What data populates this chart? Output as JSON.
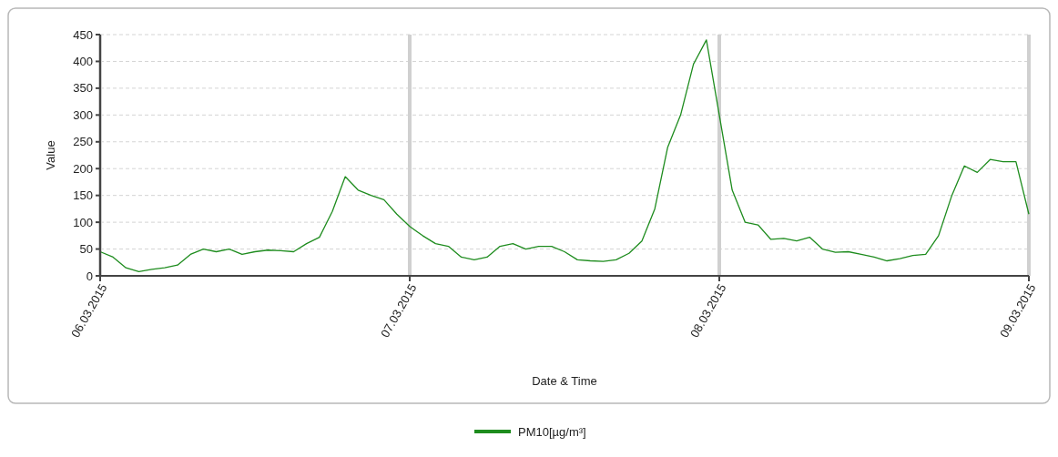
{
  "chart_data": {
    "type": "line",
    "xlabel": "Date & Time",
    "ylabel": "Value",
    "x": [
      "2015-03-06T00:00",
      "2015-03-06T01:00",
      "2015-03-06T02:00",
      "2015-03-06T03:00",
      "2015-03-06T04:00",
      "2015-03-06T05:00",
      "2015-03-06T06:00",
      "2015-03-06T07:00",
      "2015-03-06T08:00",
      "2015-03-06T09:00",
      "2015-03-06T10:00",
      "2015-03-06T11:00",
      "2015-03-06T12:00",
      "2015-03-06T13:00",
      "2015-03-06T14:00",
      "2015-03-06T15:00",
      "2015-03-06T16:00",
      "2015-03-06T17:00",
      "2015-03-06T18:00",
      "2015-03-06T19:00",
      "2015-03-06T20:00",
      "2015-03-06T21:00",
      "2015-03-06T22:00",
      "2015-03-06T23:00",
      "2015-03-07T00:00",
      "2015-03-07T01:00",
      "2015-03-07T02:00",
      "2015-03-07T03:00",
      "2015-03-07T04:00",
      "2015-03-07T05:00",
      "2015-03-07T06:00",
      "2015-03-07T07:00",
      "2015-03-07T08:00",
      "2015-03-07T09:00",
      "2015-03-07T10:00",
      "2015-03-07T11:00",
      "2015-03-07T12:00",
      "2015-03-07T13:00",
      "2015-03-07T14:00",
      "2015-03-07T15:00",
      "2015-03-07T16:00",
      "2015-03-07T17:00",
      "2015-03-07T18:00",
      "2015-03-07T19:00",
      "2015-03-07T20:00",
      "2015-03-07T21:00",
      "2015-03-07T22:00",
      "2015-03-07T23:00",
      "2015-03-08T00:00",
      "2015-03-08T01:00",
      "2015-03-08T02:00",
      "2015-03-08T03:00",
      "2015-03-08T04:00",
      "2015-03-08T05:00",
      "2015-03-08T06:00",
      "2015-03-08T07:00",
      "2015-03-08T08:00",
      "2015-03-08T09:00",
      "2015-03-08T10:00",
      "2015-03-08T11:00",
      "2015-03-08T12:00",
      "2015-03-08T13:00",
      "2015-03-08T14:00",
      "2015-03-08T15:00",
      "2015-03-08T16:00",
      "2015-03-08T17:00",
      "2015-03-08T18:00",
      "2015-03-08T19:00",
      "2015-03-08T20:00",
      "2015-03-08T21:00",
      "2015-03-08T22:00",
      "2015-03-08T23:00",
      "2015-03-09T00:00"
    ],
    "series": [
      {
        "name": "PM10[µg/m³]",
        "color": "#1e8c1e",
        "values": [
          45,
          35,
          15,
          8,
          12,
          15,
          20,
          40,
          50,
          45,
          50,
          40,
          45,
          48,
          47,
          45,
          60,
          72,
          120,
          185,
          160,
          150,
          142,
          115,
          92,
          75,
          60,
          55,
          35,
          30,
          35,
          55,
          60,
          50,
          55,
          55,
          45,
          30,
          28,
          27,
          30,
          42,
          65,
          125,
          240,
          300,
          395,
          440,
          300,
          160,
          100,
          95,
          68,
          70,
          65,
          72,
          50,
          44,
          45,
          40,
          35,
          28,
          32,
          38,
          40,
          75,
          148,
          205,
          193,
          217,
          213,
          213,
          115
        ]
      }
    ],
    "xlim": [
      "2015-03-06T00:00",
      "2015-03-09T00:00"
    ],
    "xticks": [
      {
        "value": "2015-03-06T00:00",
        "label": "06.03.2015"
      },
      {
        "value": "2015-03-07T00:00",
        "label": "07.03.2015"
      },
      {
        "value": "2015-03-08T00:00",
        "label": "08.03.2015"
      },
      {
        "value": "2015-03-09T00:00",
        "label": "09.03.2015"
      }
    ],
    "ylim": [
      0,
      450
    ],
    "yticks": [
      0,
      50,
      100,
      150,
      200,
      250,
      300,
      350,
      400,
      450
    ],
    "grid": true,
    "legend": "bottom",
    "marker": "none",
    "line_style": "solid"
  }
}
